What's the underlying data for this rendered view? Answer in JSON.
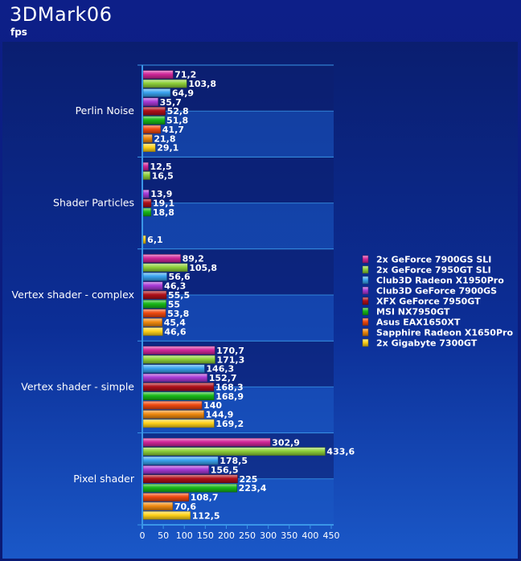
{
  "header": {
    "title": "3DMark06",
    "subtitle": "fps"
  },
  "colors": {
    "series": [
      "#d2279a",
      "#8ed03a",
      "#3aa4f0",
      "#a83ad6",
      "#b0101a",
      "#18b818",
      "#f04a10",
      "#f08a10",
      "#ffd21a"
    ],
    "axis": "#3a96e8",
    "band_dark": "#0c1f70",
    "band_light": "#1c5ac4"
  },
  "chart_data": {
    "type": "bar",
    "orientation": "horizontal",
    "categories": [
      "Perlin Noise",
      "Shader Particles",
      "Vertex shader - complex",
      "Vertex shader - simple",
      "Pixel shader"
    ],
    "xlim": [
      0,
      450
    ],
    "xticks": [
      "0",
      "50",
      "100",
      "150",
      "200",
      "250",
      "300",
      "350",
      "400",
      "450"
    ],
    "legend_position": "right",
    "series": [
      {
        "name": "2x GeForce 7900GS SLI",
        "values": [
          71.2,
          12.5,
          89.2,
          170.7,
          302.9
        ],
        "labels": [
          "71,2",
          "12,5",
          "89,2",
          "170,7",
          "302,9"
        ]
      },
      {
        "name": "2x GeForce 7950GT SLI",
        "values": [
          103.8,
          16.5,
          105.8,
          171.3,
          433.6
        ],
        "labels": [
          "103,8",
          "16,5",
          "105,8",
          "171,3",
          "433,6"
        ]
      },
      {
        "name": "Club3D Radeon X1950Pro",
        "values": [
          64.9,
          null,
          56.6,
          146.3,
          178.5
        ],
        "labels": [
          "64,9",
          "",
          "56,6",
          "146,3",
          "178,5"
        ]
      },
      {
        "name": "Club3D GeForce 7900GS",
        "values": [
          35.7,
          13.9,
          46.3,
          152.7,
          156.5
        ],
        "labels": [
          "35,7",
          "13,9",
          "46,3",
          "152,7",
          "156,5"
        ]
      },
      {
        "name": "XFX GeForce 7950GT",
        "values": [
          52.8,
          19.1,
          55.5,
          168.3,
          225
        ],
        "labels": [
          "52,8",
          "19,1",
          "55,5",
          "168,3",
          "225"
        ]
      },
      {
        "name": "MSI NX7950GT",
        "values": [
          51.8,
          18.8,
          55,
          168.9,
          223.4
        ],
        "labels": [
          "51,8",
          "18,8",
          "55",
          "168,9",
          "223,4"
        ]
      },
      {
        "name": "Asus EAX1650XT",
        "values": [
          41.7,
          null,
          53.8,
          140,
          108.7
        ],
        "labels": [
          "41,7",
          "",
          "53,8",
          "140",
          "108,7"
        ]
      },
      {
        "name": "Sapphire Radeon X1650Pro",
        "values": [
          21.8,
          null,
          45.4,
          144.9,
          70.6
        ],
        "labels": [
          "21,8",
          "",
          "45,4",
          "144,9",
          "70,6"
        ]
      },
      {
        "name": "2x Gigabyte 7300GT",
        "values": [
          29.1,
          6.1,
          46.6,
          169.2,
          112.5
        ],
        "labels": [
          "29,1",
          "6,1",
          "46,6",
          "169,2",
          "112,5"
        ]
      }
    ]
  }
}
